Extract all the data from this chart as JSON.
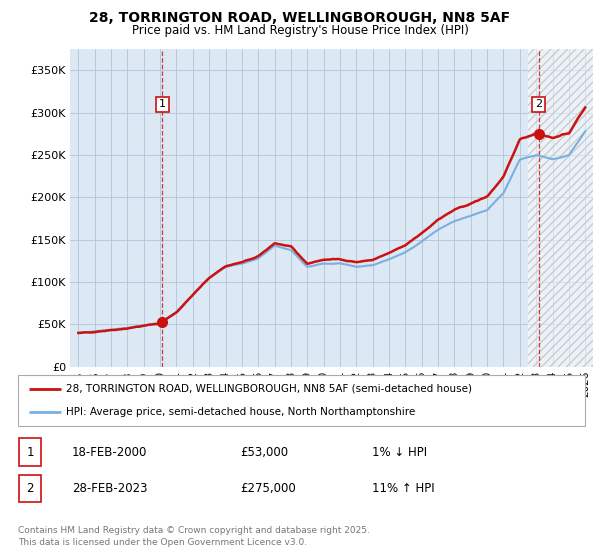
{
  "title_line1": "28, TORRINGTON ROAD, WELLINGBOROUGH, NN8 5AF",
  "title_line2": "Price paid vs. HM Land Registry's House Price Index (HPI)",
  "bg_color": "#ffffff",
  "plot_bg_color": "#dce9f5",
  "grid_color": "#b0c4d8",
  "line1_color": "#cc1111",
  "line2_color": "#7ab0e0",
  "sale1_year": 2000.13,
  "sale1_price": 53000,
  "sale2_year": 2023.16,
  "sale2_price": 275000,
  "legend_label1": "28, TORRINGTON ROAD, WELLINGBOROUGH, NN8 5AF (semi-detached house)",
  "legend_label2": "HPI: Average price, semi-detached house, North Northamptonshire",
  "table_row1": [
    "1",
    "18-FEB-2000",
    "£53,000",
    "1% ↓ HPI"
  ],
  "table_row2": [
    "2",
    "28-FEB-2023",
    "£275,000",
    "11% ↑ HPI"
  ],
  "footer": "Contains HM Land Registry data © Crown copyright and database right 2025.\nThis data is licensed under the Open Government Licence v3.0.",
  "ylim_min": 0,
  "ylim_max": 375000,
  "xmin": 1994.5,
  "xmax": 2026.5,
  "hatch_start": 2022.5
}
